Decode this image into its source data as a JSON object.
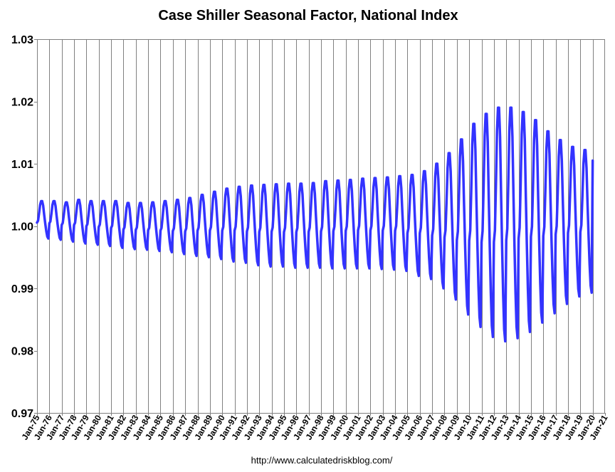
{
  "chart_data": {
    "type": "line",
    "title": "Case Shiller Seasonal Factor, National Index",
    "xlabel": "",
    "ylabel": "",
    "ylim": [
      0.97,
      1.03
    ],
    "y_ticks": [
      "0.97",
      "0.98",
      "0.99",
      "1.00",
      "1.01",
      "1.02",
      "1.03"
    ],
    "x_range": [
      1975,
      2021
    ],
    "x_tick_labels": [
      "Jan-75",
      "Jan-76",
      "Jan-77",
      "Jan-78",
      "Jan-79",
      "Jan-80",
      "Jan-81",
      "Jan-82",
      "Jan-83",
      "Jan-84",
      "Jan-85",
      "Jan-86",
      "Jan-87",
      "Jan-88",
      "Jan-89",
      "Jan-90",
      "Jan-91",
      "Jan-92",
      "Jan-93",
      "Jan-94",
      "Jan-95",
      "Jan-96",
      "Jan-97",
      "Jan-98",
      "Jan-99",
      "Jan-00",
      "Jan-01",
      "Jan-02",
      "Jan-03",
      "Jan-04",
      "Jan-05",
      "Jan-06",
      "Jan-07",
      "Jan-08",
      "Jan-09",
      "Jan-10",
      "Jan-11",
      "Jan-12",
      "Jan-13",
      "Jan-14",
      "Jan-15",
      "Jan-16",
      "Jan-17",
      "Jan-18",
      "Jan-19",
      "Jan-20",
      "Jan-21"
    ],
    "grid": "vertical",
    "series": [
      {
        "name": "Seasonal Factor, National Index",
        "color": "#3333ff",
        "frequency": "monthly",
        "start": "Jan-1975",
        "end": "Jan-2020",
        "seasonal_peak_month": "Jun",
        "seasonal_trough_month": "Dec",
        "annual_peak": [
          [
            1975,
            1.004
          ],
          [
            1976,
            1.004
          ],
          [
            1977,
            1.0038
          ],
          [
            1978,
            1.0042
          ],
          [
            1979,
            1.004
          ],
          [
            1980,
            1.004
          ],
          [
            1981,
            1.004
          ],
          [
            1982,
            1.0037
          ],
          [
            1983,
            1.0037
          ],
          [
            1984,
            1.0038
          ],
          [
            1985,
            1.004
          ],
          [
            1986,
            1.0042
          ],
          [
            1987,
            1.0045
          ],
          [
            1988,
            1.005
          ],
          [
            1989,
            1.0055
          ],
          [
            1990,
            1.006
          ],
          [
            1991,
            1.0063
          ],
          [
            1992,
            1.0065
          ],
          [
            1993,
            1.0066
          ],
          [
            1994,
            1.0067
          ],
          [
            1995,
            1.0068
          ],
          [
            1996,
            1.0068
          ],
          [
            1997,
            1.0069
          ],
          [
            1998,
            1.0072
          ],
          [
            1999,
            1.0073
          ],
          [
            2000,
            1.0074
          ],
          [
            2001,
            1.0076
          ],
          [
            2002,
            1.0077
          ],
          [
            2003,
            1.0078
          ],
          [
            2004,
            1.008
          ],
          [
            2005,
            1.0082
          ],
          [
            2006,
            1.0088
          ],
          [
            2007,
            1.01
          ],
          [
            2008,
            1.0117
          ],
          [
            2009,
            1.0139
          ],
          [
            2010,
            1.0164
          ],
          [
            2011,
            1.018
          ],
          [
            2012,
            1.019
          ],
          [
            2013,
            1.019
          ],
          [
            2014,
            1.0183
          ],
          [
            2015,
            1.017
          ],
          [
            2016,
            1.0152
          ],
          [
            2017,
            1.0138
          ],
          [
            2018,
            1.0127
          ],
          [
            2019,
            1.0122
          ],
          [
            2020,
            1.0122
          ]
        ],
        "annual_trough": [
          [
            1975,
            0.998
          ],
          [
            1976,
            0.9978
          ],
          [
            1977,
            0.9975
          ],
          [
            1978,
            0.9972
          ],
          [
            1979,
            0.997
          ],
          [
            1980,
            0.9968
          ],
          [
            1981,
            0.9965
          ],
          [
            1982,
            0.9963
          ],
          [
            1983,
            0.9962
          ],
          [
            1984,
            0.996
          ],
          [
            1985,
            0.9958
          ],
          [
            1986,
            0.9955
          ],
          [
            1987,
            0.9952
          ],
          [
            1988,
            0.995
          ],
          [
            1989,
            0.9947
          ],
          [
            1990,
            0.9943
          ],
          [
            1991,
            0.9941
          ],
          [
            1992,
            0.9937
          ],
          [
            1993,
            0.9935
          ],
          [
            1994,
            0.9935
          ],
          [
            1995,
            0.9933
          ],
          [
            1996,
            0.9933
          ],
          [
            1997,
            0.9933
          ],
          [
            1998,
            0.9932
          ],
          [
            1999,
            0.9932
          ],
          [
            2000,
            0.9932
          ],
          [
            2001,
            0.9932
          ],
          [
            2002,
            0.9931
          ],
          [
            2003,
            0.993
          ],
          [
            2004,
            0.9928
          ],
          [
            2005,
            0.992
          ],
          [
            2006,
            0.9915
          ],
          [
            2007,
            0.99
          ],
          [
            2008,
            0.9882
          ],
          [
            2009,
            0.9858
          ],
          [
            2010,
            0.9838
          ],
          [
            2011,
            0.9822
          ],
          [
            2012,
            0.9815
          ],
          [
            2013,
            0.982
          ],
          [
            2014,
            0.983
          ],
          [
            2015,
            0.9845
          ],
          [
            2016,
            0.986
          ],
          [
            2017,
            0.9875
          ],
          [
            2018,
            0.9887
          ],
          [
            2019,
            0.9893
          ],
          [
            2020,
            0.9895
          ]
        ],
        "last_value": 1.0105
      }
    ]
  },
  "footer": {
    "source": "http://www.calculatedriskblog.com/"
  }
}
